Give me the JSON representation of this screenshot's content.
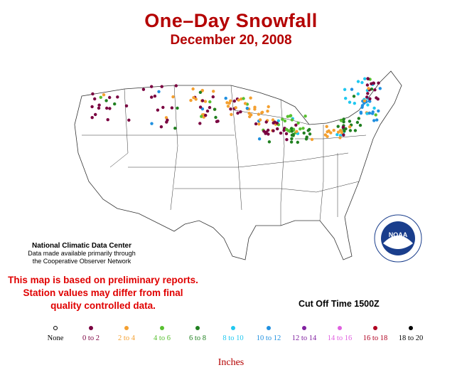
{
  "title": "One–Day Snowfall",
  "subtitle": "December 20, 2008",
  "credit": {
    "line1": "National Climatic Data Center",
    "line2": "Data made available primarily through",
    "line3": "the Cooperative Observer Network"
  },
  "warning": {
    "line1": "This map is based on preliminary reports.",
    "line2": "Station values may differ from final",
    "line3": "quality controlled data."
  },
  "cutoff": "Cut Off Time 1500Z",
  "units": "Inches",
  "legend": [
    {
      "label": "None",
      "color": "#000000",
      "hollow": true
    },
    {
      "label": "0 to 2",
      "color": "#7a0040"
    },
    {
      "label": "2 to 4",
      "color": "#f4a030"
    },
    {
      "label": "4 to 6",
      "color": "#58c030"
    },
    {
      "label": "6 to 8",
      "color": "#208020"
    },
    {
      "label": "8 to 10",
      "color": "#20c8f0"
    },
    {
      "label": "10 to 12",
      "color": "#2090e0"
    },
    {
      "label": "12 to 14",
      "color": "#8020a0"
    },
    {
      "label": "14 to 16",
      "color": "#e060e0"
    },
    {
      "label": "16 to 18",
      "color": "#b00020"
    },
    {
      "label": "18 to 20",
      "color": "#000000"
    }
  ],
  "logo": {
    "text": "NOAA",
    "color": "#1a3e8c"
  }
}
